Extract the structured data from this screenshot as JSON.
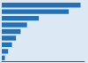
{
  "chart_data": {
    "type": "bar",
    "orientation": "horizontal",
    "categories": [
      null,
      null,
      null,
      null,
      null,
      null,
      null,
      null,
      null
    ],
    "values": [
      100,
      85,
      47,
      32,
      24,
      18,
      13,
      8,
      4
    ],
    "color": "#2272b5",
    "xlim": [
      0,
      105
    ],
    "grid": false,
    "tick_labels": false
  }
}
